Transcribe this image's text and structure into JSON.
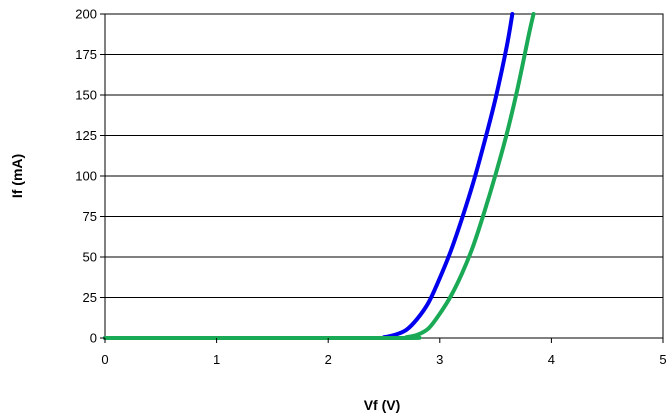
{
  "chart_data": {
    "type": "line",
    "xlabel": "Vf (V)",
    "ylabel": "If (mA)",
    "xlim": [
      0,
      5
    ],
    "ylim": [
      0,
      200
    ],
    "x_ticks": [
      0,
      1,
      2,
      3,
      4,
      5
    ],
    "y_ticks": [
      0,
      25,
      50,
      75,
      100,
      125,
      150,
      175,
      200
    ],
    "grid": "horizontal",
    "legend": "none",
    "series": [
      {
        "color": "#0000ee",
        "points": [
          [
            0,
            0
          ],
          [
            2.4,
            0
          ],
          [
            2.5,
            0.5
          ],
          [
            2.6,
            2
          ],
          [
            2.7,
            5
          ],
          [
            2.8,
            12
          ],
          [
            2.9,
            22
          ],
          [
            3.0,
            37
          ],
          [
            3.1,
            54
          ],
          [
            3.2,
            74
          ],
          [
            3.3,
            96
          ],
          [
            3.4,
            121
          ],
          [
            3.5,
            148
          ],
          [
            3.6,
            180
          ],
          [
            3.65,
            200
          ]
        ]
      },
      {
        "color": "#1aaa55",
        "points": [
          [
            0,
            0
          ],
          [
            2.6,
            0
          ],
          [
            2.7,
            0.5
          ],
          [
            2.8,
            2
          ],
          [
            2.9,
            6
          ],
          [
            3.0,
            15
          ],
          [
            3.1,
            26
          ],
          [
            3.2,
            40
          ],
          [
            3.3,
            57
          ],
          [
            3.4,
            78
          ],
          [
            3.5,
            101
          ],
          [
            3.6,
            126
          ],
          [
            3.7,
            155
          ],
          [
            3.8,
            188
          ],
          [
            3.84,
            200
          ]
        ]
      }
    ]
  }
}
